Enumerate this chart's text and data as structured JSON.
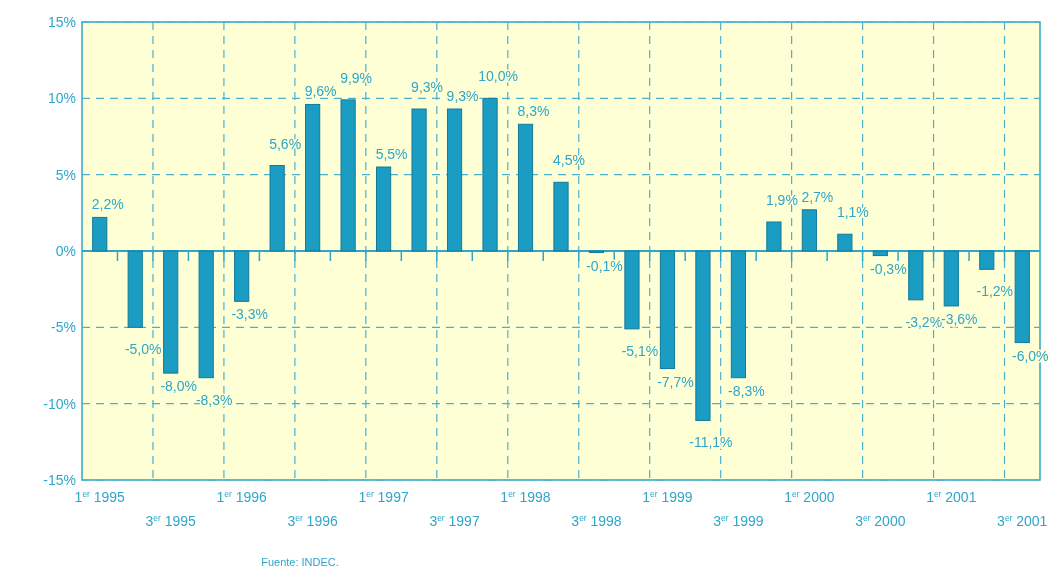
{
  "chart_data": {
    "type": "bar",
    "categories": [
      "1$^{er}$ 1995",
      null,
      "3$^{er}$ 1995",
      null,
      "1$^{er}$ 1996",
      null,
      "3$^{er}$ 1996",
      null,
      "1$^{er}$ 1997",
      null,
      "3$^{er}$ 1997",
      null,
      "1$^{er}$ 1998",
      null,
      "3$^{er}$ 1998",
      null,
      "1$^{er}$ 1999",
      null,
      "3$^{er}$ 1999",
      null,
      "1$^{er}$ 2000",
      null,
      "3$^{er}$ 2000",
      null,
      "1$^{er}$ 2001",
      null,
      "3$^{er}$ 2001"
    ],
    "values": [
      2.2,
      -5.0,
      -8.0,
      -8.3,
      -3.3,
      5.6,
      9.6,
      9.9,
      5.5,
      9.3,
      9.3,
      10.0,
      8.3,
      4.5,
      -0.1,
      -5.1,
      -7.7,
      -11.1,
      -8.3,
      1.9,
      2.7,
      1.1,
      -0.3,
      -3.2,
      -3.6,
      -1.2,
      -6.0
    ],
    "color": "#1b9cc2",
    "ylim": [
      -15,
      15
    ],
    "yticks": [
      {
        "value": -15,
        "label": "-15%"
      },
      {
        "value": -10,
        "label": "-10%"
      },
      {
        "value": -5,
        "label": "-5%"
      },
      {
        "value": 0,
        "label": "0%"
      },
      {
        "value": 5,
        "label": "5%"
      },
      {
        "value": 10,
        "label": "10%"
      },
      {
        "value": 15,
        "label": "15%"
      }
    ],
    "grid": true,
    "value_labels": [
      "2,2%",
      "-5,0%",
      "-8,0%",
      "-8,3%",
      "-3,3%",
      "5,6%",
      "9,6%",
      "9,9%",
      "5,5%",
      "9,3%",
      "9,3%",
      "10,0%",
      "8,3%",
      "4,5%",
      "-0,1%",
      "-5,1%",
      "-7,7%",
      "-11,1%",
      "-8,3%",
      "1,9%",
      "2,7%",
      "1,1%",
      "-0,3%",
      "-3,2%",
      "-3,6%",
      "-1,2%",
      "-6,0%"
    ],
    "ref_lines": [
      {
        "axis": "y",
        "value": 0,
        "color": "#2fa6c9"
      }
    ],
    "annotations": [
      "Fuente: INDEC."
    ]
  }
}
